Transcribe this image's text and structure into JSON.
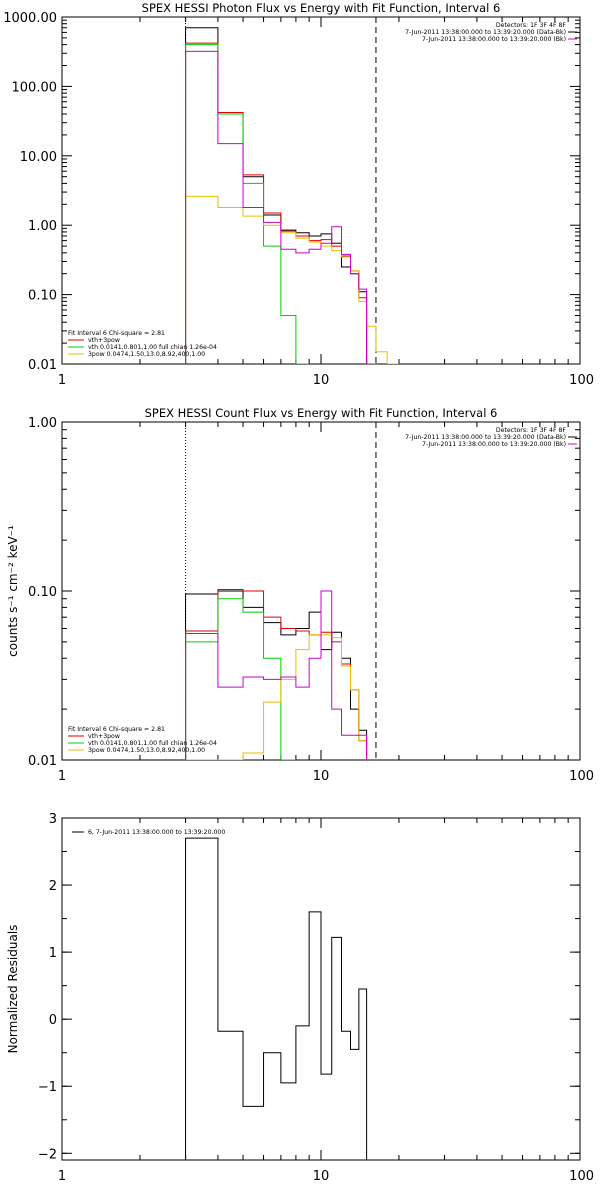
{
  "chart_data": [
    {
      "type": "line",
      "title": "SPEX HESSI Photon Flux vs Energy with Fit Function, Interval 6",
      "xlabel": "",
      "ylabel": "",
      "x_scale": "log",
      "y_scale": "log",
      "xlim": [
        1,
        100
      ],
      "ylim": [
        0.01,
        1000
      ],
      "x_ticks": [
        {
          "value": 1,
          "label": "1"
        },
        {
          "value": 10,
          "label": "10"
        },
        {
          "value": 100,
          "label": "100"
        }
      ],
      "y_ticks": [
        {
          "value": 1000,
          "label": "1000.00"
        },
        {
          "value": 100,
          "label": "100.00"
        },
        {
          "value": 10,
          "label": "10.00"
        },
        {
          "value": 1,
          "label": "1.00"
        },
        {
          "value": 0.1,
          "label": "0.10"
        },
        {
          "value": 0.01,
          "label": "0.01"
        }
      ],
      "vlines": [
        {
          "x": 3.0,
          "style": "dotted"
        },
        {
          "x": 16.3,
          "style": "dashed"
        }
      ],
      "bin_edges": [
        3.0,
        4.0,
        5.0,
        6.0,
        7.0,
        8.0,
        9.0,
        10.0,
        11.0,
        12.0,
        13.0,
        14.0,
        15.0,
        16.3,
        18.0,
        20.0,
        22.0
      ],
      "annotations_top": [
        "Detectors: 1F 3F 4F 8F",
        "7-Jun-2011 13:38:00.000 to 13:39:20.000 (Data-Bk)",
        "7-Jun-2011 13:38:00.000 to 13:39:20.000 (Bk)"
      ],
      "legend": {
        "placement": "bottom-left",
        "header": "Fit Interval  6    Chi-square = 2.81",
        "entries": [
          {
            "label": "vth+3pow",
            "color": "#e00000"
          },
          {
            "label": "vth 0.0141,0.801,1.00  full chian 1.26e-04",
            "color": "#00cc00"
          },
          {
            "label": "3pow 0.0474,1.50,13.0,8.92,400,1.00",
            "color": "#e6c000"
          }
        ]
      },
      "series": [
        {
          "color": "#000000",
          "values": [
            700,
            40,
            5.0,
            1.4,
            0.85,
            0.78,
            0.7,
            0.75,
            0.55,
            0.25,
            0.2,
            0.11
          ]
        },
        {
          "color": "#e00000",
          "values": [
            420,
            42,
            5.3,
            1.5,
            0.82,
            0.7,
            0.6,
            0.62,
            0.5,
            0.36,
            0.22,
            0.09
          ]
        },
        {
          "color": "#00cc00",
          "values": [
            400,
            40,
            4.0,
            0.5,
            0.05,
            0.003
          ]
        },
        {
          "color": "#e6c000",
          "values": [
            2.6,
            1.8,
            1.35,
            1.0,
            0.78,
            0.65,
            0.57,
            0.5,
            0.43,
            0.35,
            0.22,
            0.08,
            0.035,
            0.015,
            0.01
          ]
        },
        {
          "color": "#cc00cc",
          "values": [
            320,
            15,
            1.8,
            1.1,
            0.45,
            0.4,
            0.45,
            0.55,
            0.95,
            0.38,
            0.2,
            0.12,
            0.006
          ]
        }
      ]
    },
    {
      "type": "line",
      "title": "SPEX HESSI Count Flux vs Energy with Fit Function, Interval 6",
      "xlabel": "",
      "ylabel": "counts s⁻¹ cm⁻² keV⁻¹",
      "x_scale": "log",
      "y_scale": "log",
      "xlim": [
        1,
        100
      ],
      "ylim": [
        0.01,
        1
      ],
      "x_ticks": [
        {
          "value": 1,
          "label": "1"
        },
        {
          "value": 10,
          "label": "10"
        },
        {
          "value": 100,
          "label": "100"
        }
      ],
      "y_ticks": [
        {
          "value": 1,
          "label": "1.00"
        },
        {
          "value": 0.1,
          "label": "0.10"
        },
        {
          "value": 0.01,
          "label": "0.01"
        }
      ],
      "vlines": [
        {
          "x": 3.0,
          "style": "dotted"
        },
        {
          "x": 16.3,
          "style": "dashed"
        }
      ],
      "bin_edges": [
        3.0,
        4.0,
        5.0,
        6.0,
        7.0,
        8.0,
        9.0,
        10.0,
        11.0,
        12.0,
        13.0,
        14.0,
        15.0,
        16.3
      ],
      "annotations_top": [
        "Detectors: 1F 3F 4F 8F",
        "7-Jun-2011 13:38:00.000 to 13:39:20.000 (Data-Bk)",
        "7-Jun-2011 13:38:00.000 to 13:39:20.000 (Bk)"
      ],
      "legend": {
        "placement": "bottom-left",
        "header": "Fit Interval  6    Chi-square = 2.81",
        "entries": [
          {
            "label": "vth+3pow",
            "color": "#e00000"
          },
          {
            "label": "vth 0.0141,0.801,1.00  full chian 1.26e-04",
            "color": "#00cc00"
          },
          {
            "label": "3pow 0.0474,1.50,13.0,8.92,400,1.00",
            "color": "#e6c000"
          }
        ]
      },
      "series": [
        {
          "color": "#000000",
          "values": [
            0.096,
            0.1,
            0.08,
            0.065,
            0.055,
            0.06,
            0.075,
            0.045,
            0.057,
            0.04,
            0.02,
            0.015
          ]
        },
        {
          "color": "#e00000",
          "values": [
            0.058,
            0.102,
            0.1,
            0.07,
            0.06,
            0.058,
            0.055,
            0.057,
            0.05,
            0.037,
            0.026,
            0.013
          ]
        },
        {
          "color": "#00cc00",
          "values": [
            0.05,
            0.09,
            0.075,
            0.04,
            0.003
          ]
        },
        {
          "color": "#e6c000",
          "values": [
            0.008,
            0.008,
            0.011,
            0.022,
            0.03,
            0.045,
            0.055,
            0.055,
            0.053,
            0.036,
            0.026,
            0.013
          ]
        },
        {
          "color": "#cc00cc",
          "values": [
            0.056,
            0.027,
            0.031,
            0.03,
            0.031,
            0.027,
            0.04,
            0.1,
            0.02,
            0.014,
            0.014,
            0.014
          ]
        }
      ]
    },
    {
      "type": "line",
      "title": "",
      "xlabel": "",
      "ylabel": "Normalized Residuals",
      "x_scale": "log",
      "y_scale": "linear",
      "xlim": [
        1,
        100
      ],
      "ylim": [
        -2.1,
        3.0
      ],
      "x_ticks": [
        {
          "value": 1,
          "label": "1"
        },
        {
          "value": 10,
          "label": "10"
        },
        {
          "value": 100,
          "label": "100"
        }
      ],
      "y_ticks": [
        {
          "value": 3,
          "label": "3"
        },
        {
          "value": 2,
          "label": "2"
        },
        {
          "value": 1,
          "label": "1"
        },
        {
          "value": 0,
          "label": "0"
        },
        {
          "value": -1,
          "label": "−1"
        },
        {
          "value": -2,
          "label": "−2"
        }
      ],
      "legend": {
        "placement": "top-left",
        "entries": [
          {
            "label": "6,  7-Jun-2011 13:38:00.000 to 13:39:20.000",
            "color": "#000000"
          }
        ]
      },
      "bin_edges": [
        3.0,
        4.0,
        5.0,
        6.0,
        7.0,
        8.0,
        9.0,
        10.0,
        11.0,
        12.0,
        13.0,
        14.0,
        15.0,
        16.3
      ],
      "series": [
        {
          "color": "#000000",
          "values": [
            2.7,
            -0.18,
            -1.3,
            -0.5,
            -0.95,
            -0.1,
            1.6,
            -0.82,
            1.22,
            -0.18,
            -0.45,
            0.45
          ]
        }
      ]
    }
  ]
}
